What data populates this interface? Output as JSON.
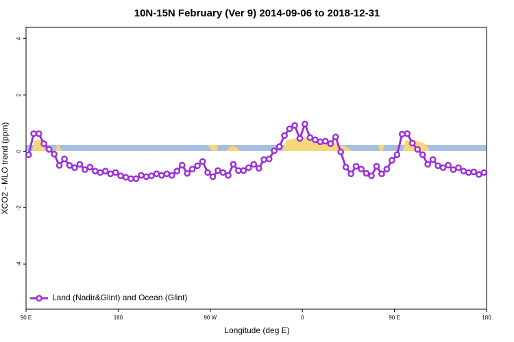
{
  "chart_data": {
    "type": "line",
    "title": "10N-15N February (Ver 9)   2014-09-06 to 2018-12-31",
    "x_label": "Longitude (deg E)",
    "y_label": "XCO2 - MLO trend (ppm)",
    "xlim": [
      90,
      540
    ],
    "ylim": [
      -5.6,
      4.4
    ],
    "xticks": [
      {
        "value": 90,
        "label": "90 E"
      },
      180,
      {
        "value": 270,
        "label": "90 W"
      },
      {
        "value": 360,
        "label": "0"
      },
      {
        "value": 450,
        "label": "90 E"
      },
      {
        "value": 540,
        "label": "180"
      }
    ],
    "yticks": [
      -4,
      -2,
      0,
      2,
      4
    ],
    "legend": "bottom-left",
    "x": [
      92.5,
      97.5,
      102.5,
      107.5,
      112.5,
      117.5,
      122.5,
      127.5,
      132.5,
      137.5,
      142.5,
      147.5,
      152.5,
      157.5,
      162.5,
      167.5,
      172.5,
      177.5,
      182.5,
      187.5,
      192.5,
      197.5,
      202.5,
      207.5,
      212.5,
      217.5,
      222.5,
      227.5,
      232.5,
      237.5,
      242.5,
      247.5,
      252.5,
      257.5,
      262.5,
      267.5,
      272.5,
      277.5,
      282.5,
      287.5,
      292.5,
      297.5,
      302.5,
      307.5,
      312.5,
      317.5,
      322.5,
      327.5,
      332.5,
      337.5,
      342.5,
      347.5,
      352.5,
      357.5,
      362.5,
      367.5,
      372.5,
      377.5,
      382.5,
      387.5,
      392.5,
      397.5,
      402.5,
      407.5,
      412.5,
      417.5,
      422.5,
      427.5,
      432.5,
      437.5,
      442.5,
      447.5,
      452.5,
      457.5,
      462.5,
      467.5,
      472.5,
      477.5,
      482.5,
      487.5,
      492.5,
      497.5,
      502.5,
      507.5,
      512.5,
      517.5,
      522.5,
      527.5,
      532.5,
      537.5
    ],
    "series": [
      {
        "name": "Land (Nadir&Glint) and Ocean (Glint)",
        "color": "#9b30d9",
        "values": [
          -0.12,
          0.63,
          0.63,
          0.27,
          0.07,
          -0.1,
          -0.5,
          -0.27,
          -0.5,
          -0.58,
          -0.46,
          -0.65,
          -0.56,
          -0.7,
          -0.75,
          -0.7,
          -0.8,
          -0.75,
          -0.87,
          -0.92,
          -0.97,
          -0.97,
          -0.85,
          -0.9,
          -0.87,
          -0.8,
          -0.85,
          -0.8,
          -0.85,
          -0.7,
          -0.49,
          -0.78,
          -0.63,
          -0.51,
          -0.36,
          -0.75,
          -0.9,
          -0.68,
          -0.75,
          -0.85,
          -0.46,
          -0.68,
          -0.68,
          -0.58,
          -0.46,
          -0.6,
          -0.29,
          -0.27,
          0.02,
          0.17,
          0.56,
          0.8,
          0.92,
          0.46,
          0.97,
          0.49,
          0.41,
          0.34,
          0.36,
          0.27,
          0.51,
          -0.02,
          -0.56,
          -0.8,
          -0.53,
          -0.63,
          -0.78,
          -0.87,
          -0.53,
          -0.8,
          -0.63,
          -0.32,
          -0.12,
          0.61,
          0.63,
          0.29,
          0.07,
          -0.12,
          -0.46,
          -0.29,
          -0.51,
          -0.58,
          -0.49,
          -0.65,
          -0.58,
          -0.7,
          -0.75,
          -0.73,
          -0.82,
          -0.75
        ]
      }
    ]
  }
}
